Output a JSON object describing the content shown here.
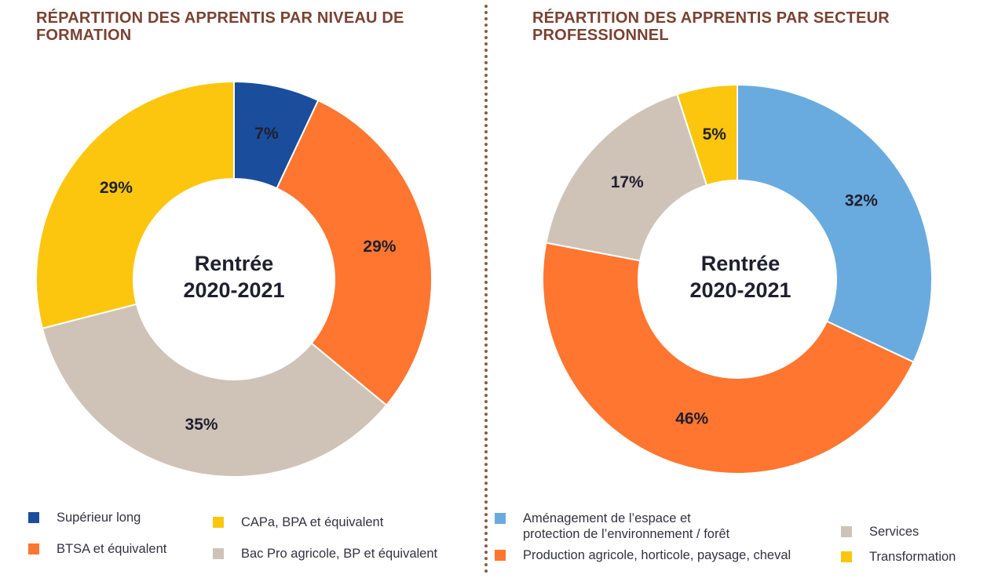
{
  "chart_data": [
    {
      "type": "pie",
      "title": "RÉPARTITION DES APPRENTIS PAR NIVEAU DE FORMATION",
      "center_label": [
        "Rentrée",
        "2020-2021"
      ],
      "unit": "%",
      "slices": [
        {
          "name": "Supérieur long",
          "value": 7,
          "label": "7%",
          "color": "#1a4d9c"
        },
        {
          "name": "BTSA et équivalent",
          "value": 29,
          "label": "29%",
          "color": "#ff7630"
        },
        {
          "name": "Bac Pro agricole, BP et équivalent",
          "value": 35,
          "label": "35%",
          "color": "#cfc3b8"
        },
        {
          "name": "CAPa, BPA et équivalent",
          "value": 29,
          "label": "29%",
          "color": "#fcc60e"
        }
      ]
    },
    {
      "type": "pie",
      "title": "RÉPARTITION DES APPRENTIS PAR SECTEUR PROFESSIONNEL",
      "center_label": [
        "Rentrée",
        "2020-2021"
      ],
      "unit": "%",
      "slices": [
        {
          "name": "Aménagement de l’espace et protection de l’environnement / forêt",
          "value": 32,
          "label": "32%",
          "color": "#6aabdf"
        },
        {
          "name": "Production agricole, horticole, paysage, cheval",
          "value": 46,
          "label": "46%",
          "color": "#ff7630"
        },
        {
          "name": "Services",
          "value": 17,
          "label": "17%",
          "color": "#cfc3b8"
        },
        {
          "name": "Transformation",
          "value": 5,
          "label": "5%",
          "color": "#fcc60e"
        }
      ]
    }
  ],
  "legends": {
    "left": [
      {
        "label": "Supérieur long",
        "color": "#1a4d9c"
      },
      {
        "label": "CAPa, BPA et équivalent",
        "color": "#fcc60e"
      },
      {
        "label": "BTSA et équivalent",
        "color": "#ff7630"
      },
      {
        "label": "Bac Pro agricole, BP et équivalent",
        "color": "#cfc3b8"
      }
    ],
    "right": [
      {
        "label": "Aménagement de l’espace et\nprotection de l’environnement / forêt",
        "color": "#6aabdf"
      },
      {
        "label": "Services",
        "color": "#cfc3b8"
      },
      {
        "label": "Production agricole, horticole, paysage, cheval",
        "color": "#ff7630"
      },
      {
        "label": "Transformation",
        "color": "#fcc60e"
      }
    ]
  }
}
